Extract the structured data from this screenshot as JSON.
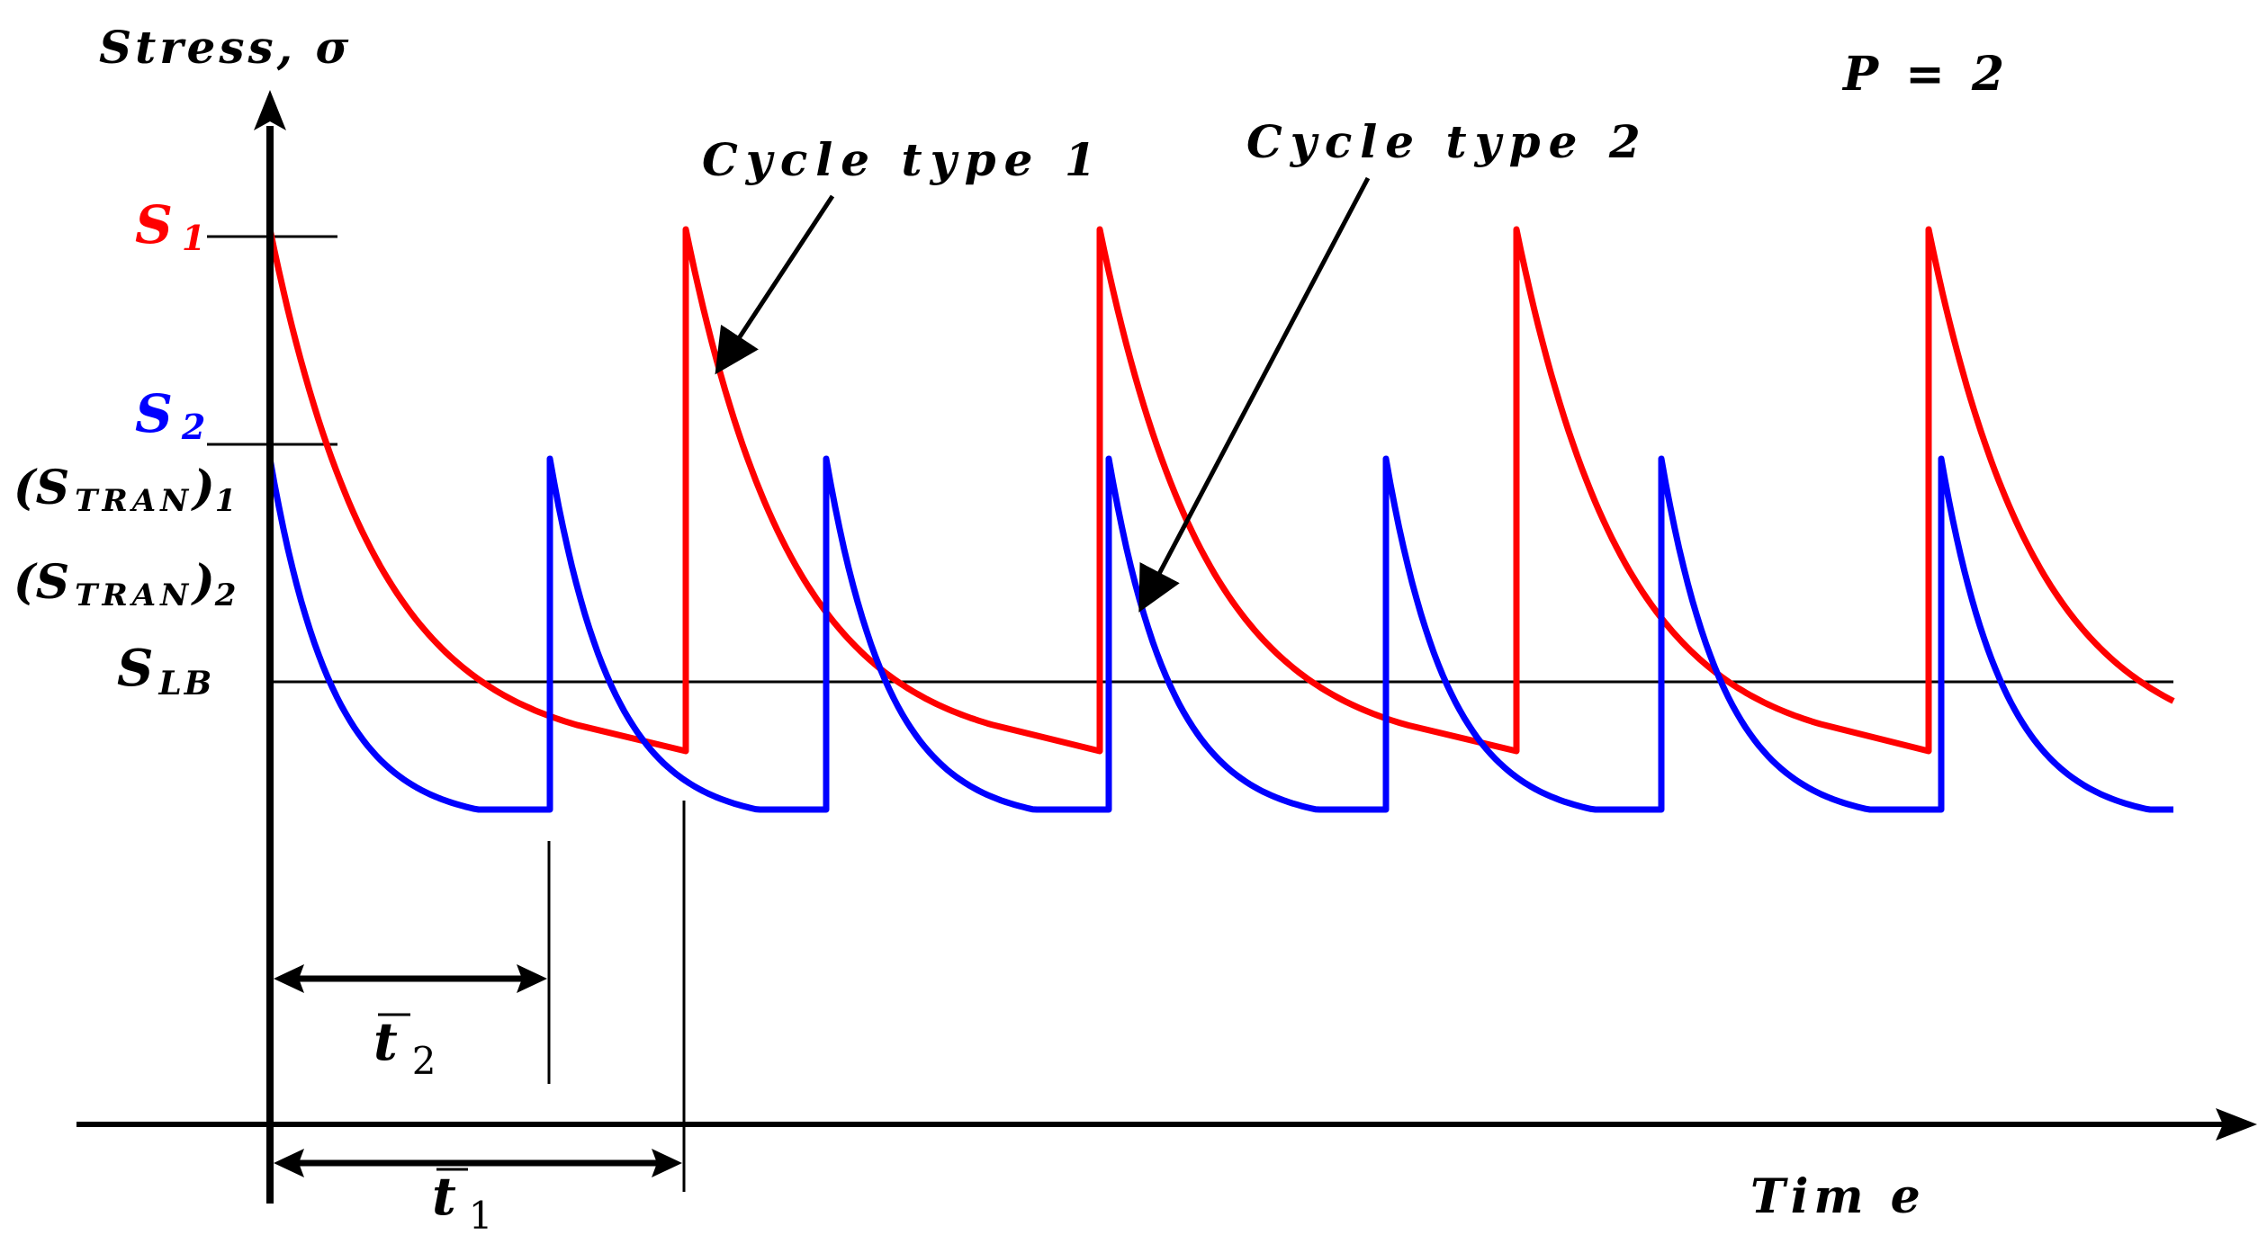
{
  "diagram": {
    "y_axis_label": "Stress, σ",
    "x_axis_label": "Tim e",
    "parameter_label": "P = 2",
    "level_labels": {
      "s1": {
        "main": "S",
        "sub": "1"
      },
      "s2": {
        "main": "S",
        "sub": "2"
      },
      "s_tran_1": {
        "open": "(S",
        "sub": "TRAN",
        "close": ")",
        "index": "1"
      },
      "s_tran_2": {
        "open": "(S",
        "sub": "TRAN",
        "close": ")",
        "index": "2"
      },
      "s_lb": {
        "main": "S",
        "sub": "LB"
      }
    },
    "annotations": {
      "cycle_type_1": "Cycle type 1",
      "cycle_type_2": "Cycle type 2"
    },
    "intervals": {
      "t2": {
        "main": "t",
        "sub": "2"
      },
      "t1": {
        "main": "t",
        "sub": "1"
      }
    },
    "colors": {
      "axis": "#000000",
      "cycle_type_1": "#ff0000",
      "cycle_type_2": "#0000ff",
      "s1_label": "#ff0000",
      "s2_label": "#0000ff",
      "black_label": "#000000"
    }
  }
}
